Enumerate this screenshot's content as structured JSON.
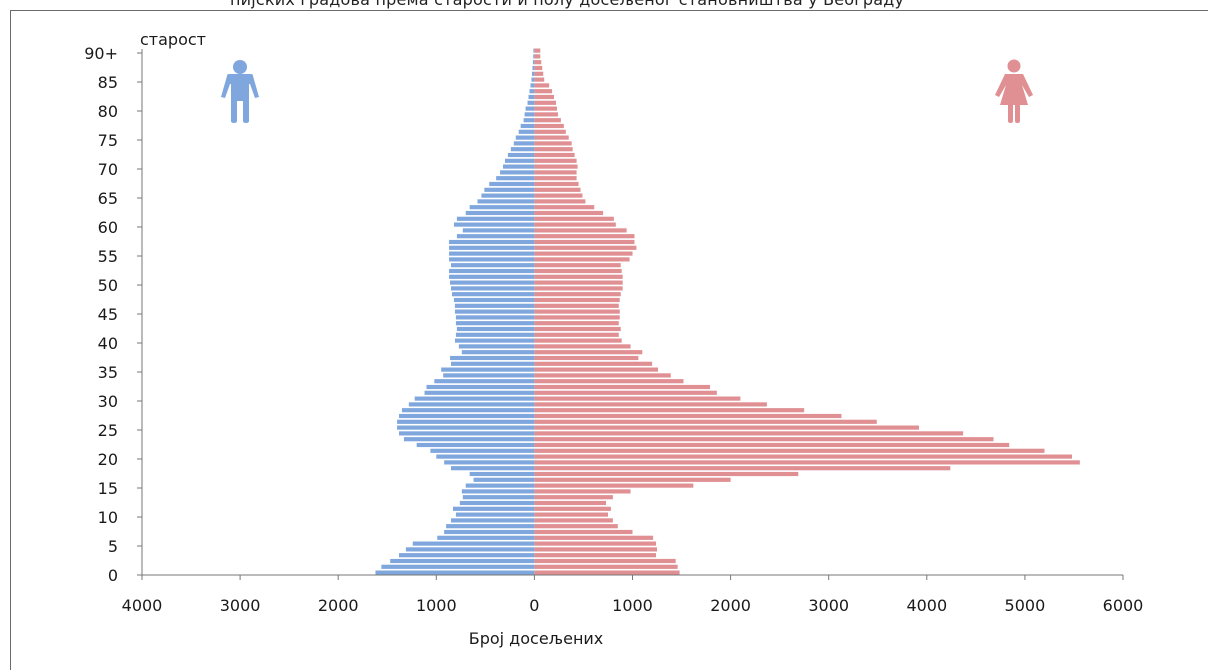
{
  "top_text": "пијских градова према старости и полу досељеног становништва у Београду",
  "chart_data": {
    "type": "bar",
    "orientation": "horizontal-population-pyramid",
    "ylabel": "старост",
    "xlabel": "Број досељених",
    "xlim": [
      -4000,
      6000
    ],
    "ylim": [
      0,
      90
    ],
    "x_ticks": [
      -4000,
      -3000,
      -2000,
      -1000,
      0,
      1000,
      2000,
      3000,
      4000,
      5000,
      6000
    ],
    "x_tick_labels": [
      "4000",
      "3000",
      "2000",
      "1000",
      "0",
      "1000",
      "2000",
      "3000",
      "4000",
      "5000",
      "6000"
    ],
    "y_ticks": [
      0,
      5,
      10,
      15,
      20,
      25,
      30,
      35,
      40,
      45,
      50,
      55,
      60,
      65,
      70,
      75,
      80,
      85,
      90
    ],
    "y_tick_labels": [
      "0",
      "5",
      "10",
      "15",
      "20",
      "25",
      "30",
      "35",
      "40",
      "45",
      "50",
      "55",
      "60",
      "65",
      "70",
      "75",
      "80",
      "85",
      "90+"
    ],
    "ages": [
      0,
      1,
      2,
      3,
      4,
      5,
      6,
      7,
      8,
      9,
      10,
      11,
      12,
      13,
      14,
      15,
      16,
      17,
      18,
      19,
      20,
      21,
      22,
      23,
      24,
      25,
      26,
      27,
      28,
      29,
      30,
      31,
      32,
      33,
      34,
      35,
      36,
      37,
      38,
      39,
      40,
      41,
      42,
      43,
      44,
      45,
      46,
      47,
      48,
      49,
      50,
      51,
      52,
      53,
      54,
      55,
      56,
      57,
      58,
      59,
      60,
      61,
      62,
      63,
      64,
      65,
      66,
      67,
      68,
      69,
      70,
      71,
      72,
      73,
      74,
      75,
      76,
      77,
      78,
      79,
      80,
      81,
      82,
      83,
      84,
      85,
      86,
      87,
      88,
      89,
      90
    ],
    "series": [
      {
        "name": "male",
        "color": "#7fa7de",
        "values": [
          1620,
          1560,
          1470,
          1380,
          1310,
          1240,
          990,
          920,
          900,
          850,
          800,
          830,
          760,
          730,
          740,
          700,
          620,
          660,
          850,
          920,
          1000,
          1060,
          1200,
          1330,
          1380,
          1400,
          1400,
          1380,
          1350,
          1280,
          1220,
          1120,
          1100,
          1020,
          930,
          950,
          850,
          860,
          740,
          770,
          810,
          800,
          790,
          800,
          800,
          810,
          810,
          820,
          840,
          850,
          860,
          870,
          870,
          850,
          870,
          870,
          870,
          870,
          790,
          730,
          820,
          790,
          700,
          660,
          580,
          540,
          510,
          460,
          390,
          350,
          320,
          300,
          270,
          240,
          210,
          190,
          160,
          140,
          110,
          100,
          90,
          70,
          60,
          50,
          40,
          30,
          25,
          20,
          15,
          12,
          10
        ]
      },
      {
        "name": "female",
        "color": "#e08f93",
        "values": [
          1480,
          1460,
          1440,
          1240,
          1250,
          1240,
          1210,
          1000,
          850,
          800,
          750,
          780,
          730,
          800,
          980,
          1620,
          2000,
          2690,
          4240,
          5560,
          5480,
          5200,
          4840,
          4680,
          4370,
          3920,
          3490,
          3130,
          2750,
          2370,
          2100,
          1860,
          1790,
          1520,
          1390,
          1260,
          1200,
          1060,
          1100,
          980,
          890,
          860,
          880,
          860,
          870,
          870,
          860,
          870,
          880,
          900,
          900,
          900,
          890,
          880,
          970,
          1000,
          1040,
          1020,
          1020,
          940,
          830,
          810,
          700,
          610,
          520,
          490,
          470,
          450,
          430,
          430,
          440,
          430,
          410,
          390,
          380,
          350,
          320,
          300,
          270,
          240,
          230,
          220,
          200,
          180,
          150,
          100,
          90,
          80,
          70,
          60,
          60
        ]
      }
    ],
    "icons": [
      {
        "name": "male-figure-icon",
        "color": "#7fa7de"
      },
      {
        "name": "female-figure-icon",
        "color": "#e08f93"
      }
    ],
    "grid": false,
    "legend": "icons-top-left-and-top-right"
  }
}
